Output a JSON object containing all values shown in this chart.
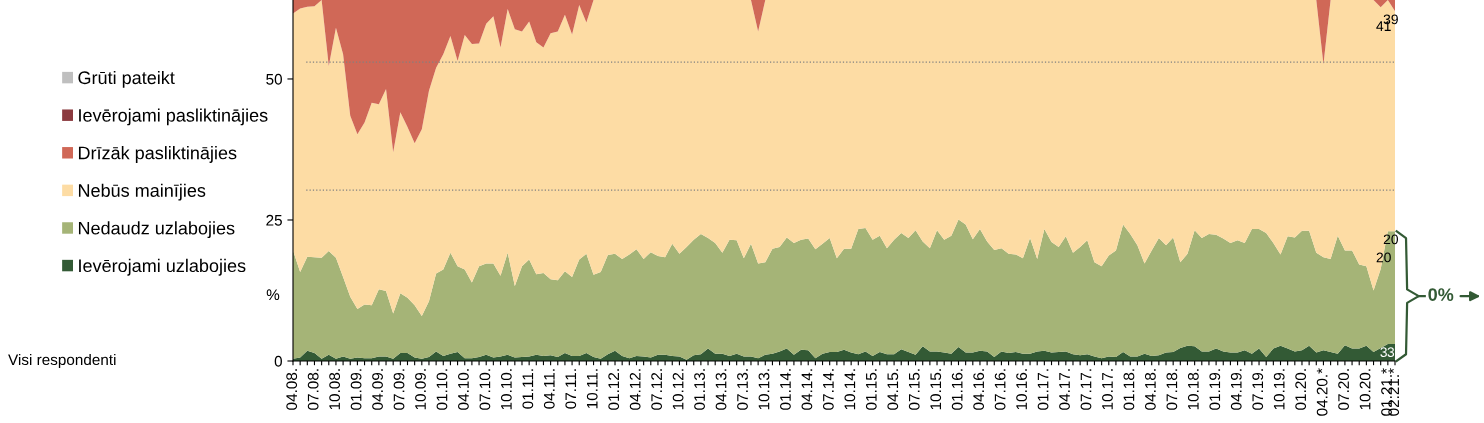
{
  "chart_data": {
    "type": "area",
    "stacked": true,
    "categories": [
      "04.08.",
      null,
      null,
      "07.08.",
      null,
      null,
      "10.08.",
      null,
      null,
      "01.09.",
      null,
      null,
      "04.09.",
      null,
      null,
      "07.09.",
      null,
      null,
      "10.09.",
      null,
      null,
      "01.10.",
      null,
      null,
      "04.10.",
      null,
      null,
      "07.10.",
      null,
      null,
      "10.10.",
      null,
      null,
      "01.11.",
      null,
      null,
      "04.11.",
      null,
      null,
      "07.11.",
      null,
      null,
      "10.11.",
      null,
      null,
      "01.12.",
      null,
      null,
      "04.12.",
      null,
      null,
      "07.12.",
      null,
      null,
      "10.12.",
      null,
      null,
      "01.13.",
      null,
      null,
      "04.13.",
      null,
      null,
      "07.13.",
      null,
      null,
      "10.13.",
      null,
      null,
      "01.14.",
      null,
      null,
      "04.14.",
      null,
      null,
      "07.14.",
      null,
      null,
      "10.14.",
      null,
      null,
      "01.15.",
      null,
      null,
      "04.15.",
      null,
      null,
      "07.15.",
      null,
      null,
      "10.15.",
      null,
      null,
      "01.16.",
      null,
      null,
      "04.16.",
      null,
      null,
      "07.16.",
      null,
      null,
      "10.16.",
      null,
      null,
      "01.17.",
      null,
      null,
      "04.17.",
      null,
      null,
      "07.17.",
      null,
      null,
      "10.17.",
      null,
      null,
      "01.18.",
      null,
      null,
      "04.18.",
      null,
      null,
      "07.18.",
      null,
      null,
      "10.18.",
      null,
      null,
      "01.19.",
      null,
      null,
      "04.19.",
      null,
      null,
      "07.19.",
      null,
      null,
      "10.19.",
      null,
      null,
      "01.20.",
      null,
      null,
      "04.20.*",
      null,
      null,
      "07.20.",
      null,
      null,
      "10.20.",
      null,
      null,
      "01.21.*",
      "02.21.*"
    ],
    "series": [
      {
        "name": "Ievērojami uzlabojies",
        "color": "#335a35",
        "values": [
          0.4,
          0.6,
          1.8,
          1.4,
          0.4,
          1.1,
          0.4,
          0.8,
          0.4,
          0.6,
          0.5,
          0.5,
          0.8,
          0.8,
          0.4,
          1.4,
          1.4,
          0.6,
          0.4,
          0.7,
          1.7,
          0.9,
          1.3,
          1.6,
          0.5,
          0.5,
          0.7,
          1.1,
          0.6,
          0.8,
          1.1,
          0.6,
          0.7,
          0.8,
          1.1,
          0.9,
          1.0,
          0.7,
          1.4,
          0.9,
          0.9,
          1.4,
          0.7,
          0.4,
          1.2,
          1.8,
          0.9,
          0.5,
          0.9,
          0.8,
          0.6,
          1.1,
          1.1,
          0.9,
          0.8,
          0.2,
          1.0,
          1.2,
          2.2,
          1.3,
          1.3,
          0.9,
          1.3,
          0.8,
          0.8,
          0.5,
          1.1,
          1.3,
          1.7,
          2.2,
          1.1,
          2.0,
          1.9,
          0.5,
          1.3,
          1.6,
          1.6,
          2.0,
          1.5,
          1.2,
          1.7,
          0.9,
          1.6,
          1.2,
          1.2,
          2.1,
          1.6,
          1.1,
          2.6,
          1.7,
          1.7,
          1.5,
          1.3,
          2.5,
          1.5,
          1.5,
          1.8,
          1.7,
          0.7,
          1.7,
          1.4,
          1.6,
          1.3,
          1.3,
          1.7,
          1.8,
          1.5,
          1.6,
          1.7,
          1.2,
          1.0,
          1.2,
          0.8,
          0.5,
          0.8,
          0.7,
          1.6,
          0.8,
          0.8,
          1.3,
          0.9,
          1.0,
          1.5,
          1.6,
          2.3,
          2.7,
          2.6,
          1.7,
          1.7,
          2.2,
          1.7,
          1.5,
          1.5,
          1.9,
          1.3,
          2.2,
          0.7,
          2.2,
          2.7,
          2.2,
          1.7,
          1.9,
          2.7,
          1.5,
          1.9,
          1.6,
          1.3,
          2.8,
          2.2,
          2.2,
          2.7,
          1.6,
          2.3,
          3,
          3
        ],
        "value_labels": [
          null,
          null,
          null,
          null,
          null,
          null,
          null,
          null,
          null,
          null,
          null,
          null,
          null,
          null,
          null,
          null,
          null,
          null,
          null,
          null,
          null,
          null,
          null,
          null,
          null,
          null,
          null,
          null,
          null,
          null,
          null,
          null,
          null,
          null,
          null,
          null,
          null,
          null,
          null,
          null,
          null,
          null,
          null,
          null,
          null,
          null,
          null,
          null,
          null,
          null,
          null,
          null,
          null,
          null,
          null,
          null,
          null,
          null,
          null,
          null,
          null,
          null,
          null,
          null,
          null,
          null,
          null,
          null,
          null,
          null,
          null,
          null,
          null,
          null,
          null,
          null,
          null,
          null,
          null,
          null,
          null,
          null,
          null,
          null,
          null,
          null,
          null,
          null,
          null,
          null,
          null,
          null,
          null,
          null,
          null,
          null,
          null,
          null,
          null,
          null,
          null,
          null,
          null,
          null,
          null,
          null,
          null,
          null,
          null,
          null,
          null,
          null,
          null,
          null,
          null,
          null,
          null,
          null,
          null,
          null,
          null,
          null,
          null,
          null,
          null,
          null,
          null,
          null,
          null,
          null,
          null,
          null,
          null,
          null,
          null,
          null,
          null,
          null,
          null,
          null,
          null,
          null,
          null,
          null,
          null,
          null,
          null,
          null,
          null,
          null,
          null,
          null,
          null,
          "3",
          "3"
        ]
      },
      {
        "name": "Nedaudz uzlabojies",
        "color": "#a5b477",
        "values": [
          19.2,
          15.2,
          16.7,
          17.0,
          17.9,
          18.4,
          17.9,
          14.1,
          11.0,
          8.6,
          9.5,
          9.4,
          11.9,
          11.6,
          8.0,
          10.6,
          9.8,
          9.3,
          7.6,
          9.9,
          13.8,
          15.3,
          17.9,
          15.2,
          15.7,
          13.4,
          16.1,
          16.2,
          16.7,
          14.3,
          18.1,
          12.7,
          16.1,
          17.2,
          14.3,
          14.7,
          13.5,
          13.6,
          14.5,
          14.0,
          17.1,
          17.6,
          14.6,
          15.4,
          17.6,
          17.2,
          17.2,
          18.4,
          18.9,
          17.3,
          18.7,
          17.5,
          17.3,
          19.9,
          18.2,
          20.0,
          20.5,
          21.3,
          19.6,
          19.6,
          17.9,
          20.6,
          20.1,
          17.4,
          20.0,
          16.8,
          16.4,
          18.6,
          18.5,
          19.7,
          19.8,
          19.5,
          19.8,
          19.3,
          19.5,
          20.2,
          16.6,
          17.9,
          18.4,
          22.2,
          21.9,
          20.6,
          20.6,
          18.8,
          20.3,
          20.6,
          20.2,
          22.1,
          18.6,
          18.3,
          21.5,
          20.0,
          20.9,
          22.6,
          22.7,
          20.1,
          21.6,
          19.5,
          19.0,
          18.3,
          17.6,
          17.3,
          16.9,
          20.5,
          16.4,
          21.6,
          19.6,
          18.6,
          20.4,
          18.0,
          19.2,
          20.2,
          16.7,
          16.3,
          17.9,
          18.9,
          22.6,
          21.7,
          19.7,
          16.0,
          18.7,
          20.8,
          19.0,
          20.3,
          15.2,
          16.3,
          20.6,
          20.1,
          20.8,
          20.2,
          20.0,
          19.4,
          19.9,
          19.0,
          22.1,
          21.2,
          22.0,
          18.7,
          16.2,
          19.9,
          20.2,
          21.2,
          20.4,
          17.7,
          16.5,
          16.5,
          20.9,
          16.8,
          17.4,
          14.9,
          14.1,
          10.9,
          14.0,
          20,
          20
        ],
        "value_labels": [
          null,
          null,
          null,
          null,
          null,
          null,
          null,
          null,
          null,
          null,
          null,
          null,
          null,
          null,
          null,
          null,
          null,
          null,
          null,
          null,
          null,
          null,
          null,
          null,
          null,
          null,
          null,
          null,
          null,
          null,
          null,
          null,
          null,
          null,
          null,
          null,
          null,
          null,
          null,
          null,
          null,
          null,
          null,
          null,
          null,
          null,
          null,
          null,
          null,
          null,
          null,
          null,
          null,
          null,
          null,
          null,
          null,
          null,
          null,
          null,
          null,
          null,
          null,
          null,
          null,
          null,
          null,
          null,
          null,
          null,
          null,
          null,
          null,
          null,
          null,
          null,
          null,
          null,
          null,
          null,
          null,
          null,
          null,
          null,
          null,
          null,
          null,
          null,
          null,
          null,
          null,
          null,
          null,
          null,
          null,
          null,
          null,
          null,
          null,
          null,
          null,
          null,
          null,
          null,
          null,
          null,
          null,
          null,
          null,
          null,
          null,
          null,
          null,
          null,
          null,
          null,
          null,
          null,
          null,
          null,
          null,
          null,
          null,
          null,
          null,
          null,
          null,
          null,
          null,
          null,
          null,
          null,
          null,
          null,
          null,
          null,
          null,
          null,
          null,
          null,
          null,
          null,
          null,
          null,
          null,
          null,
          null,
          null,
          null,
          null,
          null,
          null,
          null,
          "20",
          "20"
        ]
      },
      {
        "name": "Nebūs mainījies",
        "color": "#fddca4",
        "values": [
          42.0,
          46.7,
          44.3,
          44.5,
          45.7,
          32.8,
          40.8,
          39.5,
          32.1,
          31.0,
          32.3,
          35.9,
          32.8,
          35.8,
          28.6,
          32.1,
          30.3,
          28.7,
          33.1,
          37.3,
          36.5,
          38.2,
          38.4,
          36.4,
          41.6,
          42.3,
          39.5,
          42.5,
          43.8,
          40.5,
          43.2,
          45.5,
          41.6,
          42.2,
          41.1,
          40.0,
          43.6,
          44.1,
          45.5,
          43.0,
          45.1,
          41.0,
          48.7,
          48.2,
          45.2,
          45.0,
          45.9,
          45.1,
          44.2,
          45.9,
          44.7,
          45.4,
          45.6,
          43.2,
          45.0,
          43.8,
          42.5,
          41.5,
          42.2,
          43.1,
          44.8,
          42.5,
          42.6,
          45.8,
          43.2,
          41.1,
          46.5,
          44.1,
          43.8,
          42.1,
          43.1,
          42.5,
          42.3,
          44.2,
          43.2,
          42.2,
          45.8,
          44.1,
          44.1,
          40.6,
          40.4,
          42.5,
          41.8,
          44.0,
          42.5,
          41.3,
          42.2,
          40.8,
          42.8,
          44.0,
          40.8,
          42.5,
          41.8,
          38.9,
          39.8,
          42.4,
          40.6,
          42.8,
          44.3,
          44.0,
          45.0,
          45.1,
          45.8,
          42.2,
          45.9,
          40.6,
          42.9,
          43.8,
          41.9,
          44.8,
          43.8,
          42.6,
          46.5,
          47.2,
          45.3,
          44.4,
          39.8,
          41.5,
          43.5,
          46.7,
          44.4,
          42.2,
          43.5,
          42.1,
          46.5,
          45.0,
          40.8,
          42.2,
          41.5,
          41.6,
          42.3,
          43.1,
          42.6,
          43.1,
          40.6,
          40.6,
          41.3,
          43.1,
          45.1,
          41.9,
          42.1,
          40.9,
          40.9,
          44.8,
          34.2,
          45.9,
          41.8,
          44.4,
          44.4,
          46.9,
          47.2,
          51.5,
          46.4,
          41,
          39
        ],
        "value_labels": [
          null,
          null,
          null,
          null,
          null,
          null,
          null,
          null,
          null,
          null,
          null,
          null,
          null,
          null,
          null,
          null,
          null,
          null,
          null,
          null,
          null,
          null,
          null,
          null,
          null,
          null,
          null,
          null,
          null,
          null,
          null,
          null,
          null,
          null,
          null,
          null,
          null,
          null,
          null,
          null,
          null,
          null,
          null,
          null,
          null,
          null,
          null,
          null,
          null,
          null,
          null,
          null,
          null,
          null,
          null,
          null,
          null,
          null,
          null,
          null,
          null,
          null,
          null,
          null,
          null,
          null,
          null,
          null,
          null,
          null,
          null,
          null,
          null,
          null,
          null,
          null,
          null,
          null,
          null,
          null,
          null,
          null,
          null,
          null,
          null,
          null,
          null,
          null,
          null,
          null,
          null,
          null,
          null,
          null,
          null,
          null,
          null,
          null,
          null,
          null,
          null,
          null,
          null,
          null,
          null,
          null,
          null,
          null,
          null,
          null,
          null,
          null,
          null,
          null,
          null,
          null,
          null,
          null,
          null,
          null,
          null,
          null,
          null,
          null,
          null,
          null,
          null,
          null,
          null,
          null,
          null,
          null,
          null,
          null,
          null,
          null,
          null,
          null,
          null,
          null,
          null,
          null,
          null,
          null,
          null,
          null,
          null,
          null,
          null,
          null,
          null,
          null,
          null,
          "41",
          "39"
        ]
      },
      {
        "name": "Drīzāk pasliktinājies",
        "color": "#d06857",
        "values": [
          2.4,
          1.5,
          1.2,
          1.1,
          0,
          11.7,
          4.9,
          9.6,
          20.5,
          23.8,
          21.7,
          18.2,
          18.5,
          15.8,
          27.0,
          19.9,
          22.5,
          25.4,
          22.9,
          16.1,
          12.0,
          9.6,
          6.4,
          10.8,
          6.2,
          7.8,
          7.7,
          4.2,
          2.9,
          8.4,
          1.6,
          5.2,
          5.6,
          3.8,
          7.5,
          8.4,
          5.9,
          5.6,
          2.6,
          6.1,
          0.9,
          4.0,
          0,
          0,
          0,
          0,
          0,
          0,
          0,
          0,
          0,
          0,
          0,
          0,
          0,
          0,
          0,
          0,
          0,
          0,
          0,
          0,
          0,
          0,
          0,
          5.6,
          0,
          0,
          0,
          0,
          0,
          0,
          0,
          0,
          0,
          0,
          0,
          0,
          0,
          0,
          0,
          0,
          0,
          0,
          0,
          0,
          0,
          0,
          0,
          0,
          0,
          0,
          0,
          0,
          0,
          0,
          0,
          0,
          0,
          0,
          0,
          0,
          0,
          0,
          0,
          0,
          0,
          0,
          0,
          0,
          0,
          0,
          0,
          0,
          0,
          0,
          0,
          0,
          0,
          0,
          0,
          0,
          0,
          0,
          0,
          0,
          0,
          0,
          0,
          0,
          0,
          0,
          0,
          0,
          0,
          0,
          0,
          0,
          0,
          0,
          0,
          0,
          0,
          0,
          11.4,
          0,
          0,
          0,
          0,
          0,
          0,
          0,
          1.3,
          0,
          2
        ]
      },
      {
        "name": "Ievērojami pasliktinājies",
        "color": "#8b3a3f",
        "values": [
          null,
          null,
          null,
          null,
          null,
          null,
          null,
          null,
          null,
          null,
          null,
          null,
          null,
          null,
          null,
          null,
          null,
          null,
          null,
          null,
          null,
          null,
          null,
          null,
          null,
          null,
          null,
          null,
          null,
          null,
          null,
          null,
          null,
          null,
          null,
          null,
          null,
          null,
          null,
          null,
          null,
          null,
          null,
          null,
          null,
          null,
          null,
          null,
          null,
          null,
          null,
          null,
          null,
          null,
          null,
          null,
          null,
          null,
          null,
          null,
          null,
          null,
          null,
          null,
          null,
          null,
          null,
          null,
          null,
          null,
          null,
          null,
          null,
          null,
          null,
          null,
          null,
          null,
          null,
          null,
          null,
          null,
          null,
          null,
          null,
          null,
          null,
          null,
          null,
          null,
          null,
          null,
          null,
          null,
          null,
          null,
          null,
          null,
          null,
          null,
          null,
          null,
          null,
          null,
          null,
          null,
          null,
          null,
          null,
          null,
          null,
          null,
          null,
          null,
          null,
          null,
          null,
          null,
          null,
          null,
          null,
          null,
          null,
          null,
          null,
          null,
          null,
          null,
          null,
          null,
          null,
          null,
          null,
          null,
          null,
          null,
          null,
          null,
          null,
          null,
          null,
          null,
          null,
          null,
          null,
          null,
          null,
          null,
          null,
          null,
          null,
          null,
          null,
          null,
          null
        ]
      },
      {
        "name": "Grūti pateikt",
        "color": "#bfbfbf",
        "values": [
          null,
          null,
          null,
          null,
          null,
          null,
          null,
          null,
          null,
          null,
          null,
          null,
          null,
          null,
          null,
          null,
          null,
          null,
          null,
          null,
          null,
          null,
          null,
          null,
          null,
          null,
          null,
          null,
          null,
          null,
          null,
          null,
          null,
          null,
          null,
          null,
          null,
          null,
          null,
          null,
          null,
          null,
          null,
          null,
          null,
          null,
          null,
          null,
          null,
          null,
          null,
          null,
          null,
          null,
          null,
          null,
          null,
          null,
          null,
          null,
          null,
          null,
          null,
          null,
          null,
          null,
          null,
          null,
          null,
          null,
          null,
          null,
          null,
          null,
          null,
          null,
          null,
          null,
          null,
          null,
          null,
          null,
          null,
          null,
          null,
          null,
          null,
          null,
          null,
          null,
          null,
          null,
          null,
          null,
          null,
          null,
          null,
          null,
          null,
          null,
          null,
          null,
          null,
          null,
          null,
          null,
          null,
          null,
          null,
          null,
          null,
          null,
          null,
          null,
          null,
          null,
          null,
          null,
          null,
          null,
          null,
          null,
          null,
          null,
          null,
          null,
          null,
          null,
          null,
          null,
          null,
          null,
          null,
          null,
          null,
          null,
          null,
          null,
          null,
          null,
          null,
          null,
          null,
          null,
          null,
          null,
          null,
          null,
          null,
          null,
          null,
          null,
          null,
          null,
          null
        ]
      }
    ],
    "ylim": [
      0,
      64
    ],
    "yticks": [
      0,
      25,
      50
    ],
    "ylabel": "%",
    "ref_lines": [
      {
        "axis": "y",
        "value": 53.0,
        "color": "#808080",
        "line_style": "dotted"
      },
      {
        "axis": "y",
        "value": 30.3,
        "color": "#808080",
        "line_style": "dotted"
      }
    ],
    "legend": "left",
    "annotations": [
      "Visi respondenti",
      "0%"
    ]
  }
}
